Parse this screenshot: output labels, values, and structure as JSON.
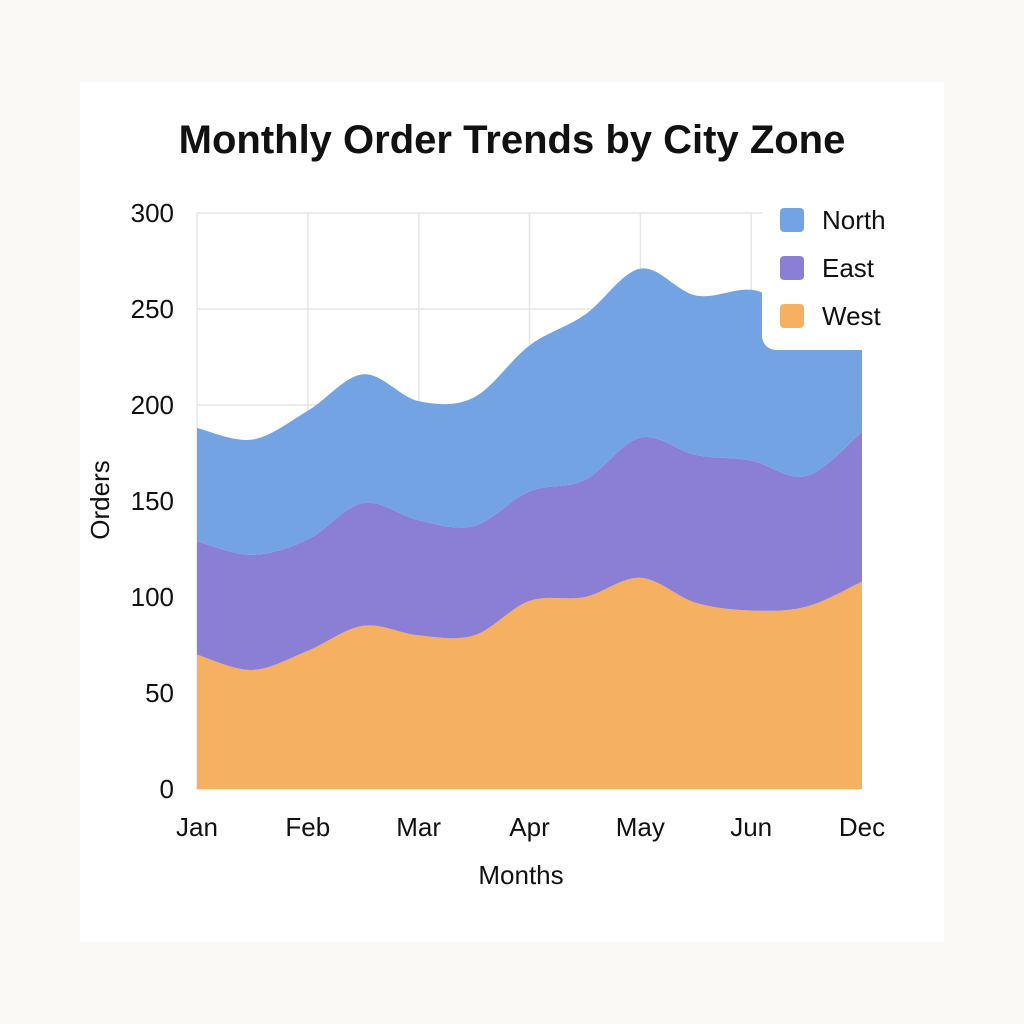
{
  "chart_data": {
    "type": "area",
    "stacked": true,
    "title": "Monthly Order Trends by City Zone",
    "xlabel": "Months",
    "ylabel": "Orders",
    "ylim": [
      0,
      300
    ],
    "yticks": [
      0,
      50,
      100,
      150,
      200,
      250,
      300
    ],
    "x_tick_labels": [
      "Jan",
      "Feb",
      "Mar",
      "Apr",
      "May",
      "Jun",
      "Dec"
    ],
    "categories": [
      "Jan",
      "",
      "Feb",
      "",
      "Mar",
      "",
      "Apr",
      "",
      "May",
      "",
      "Jun",
      "",
      "Dec"
    ],
    "series": [
      {
        "name": "West",
        "color": "#f5b061",
        "values": [
          70,
          62,
          72,
          85,
          80,
          80,
          98,
          100,
          110,
          97,
          93,
          95,
          108
        ]
      },
      {
        "name": "East",
        "color": "#8a7fd4",
        "values": [
          59,
          60,
          58,
          64,
          60,
          57,
          57,
          61,
          73,
          77,
          78,
          68,
          78
        ]
      },
      {
        "name": "North",
        "color": "#73a3e2",
        "values": [
          59,
          60,
          67,
          67,
          62,
          67,
          76,
          86,
          88,
          83,
          89,
          89,
          96
        ]
      }
    ],
    "grid": true,
    "legend": "top-right",
    "legend_order": [
      "North",
      "East",
      "West"
    ]
  }
}
